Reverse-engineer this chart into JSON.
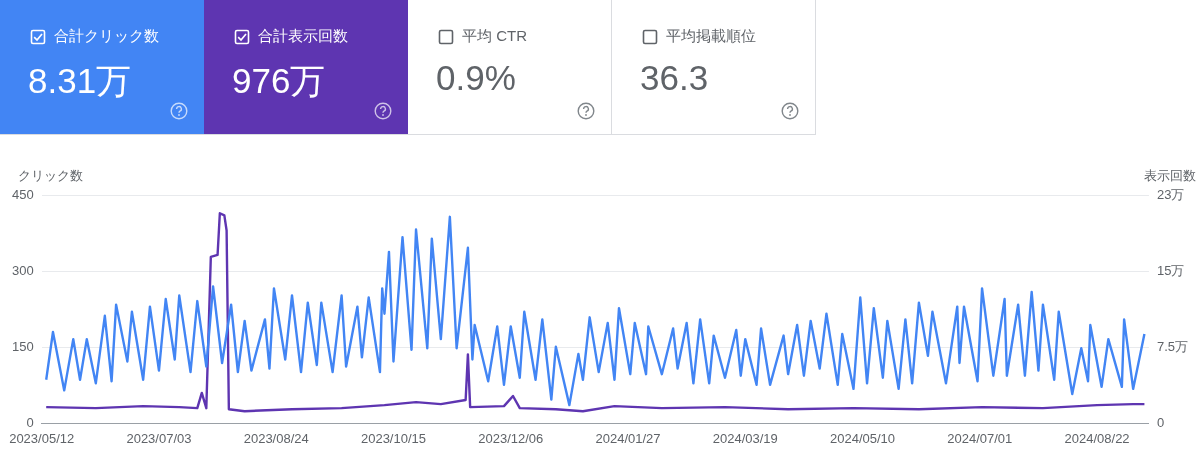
{
  "chart_data": [
    {
      "type": "other",
      "annotations": [
        "合計クリック数",
        "8.31万",
        "合計表示回数",
        "976万",
        "平均 CTR",
        "0.9%",
        "平均掲載順位",
        "36.3"
      ],
      "colors": [
        "#4285f4",
        "#5e35b1",
        null,
        null
      ]
    },
    {
      "type": "line",
      "ylabel": "クリック数",
      "y2label": "表示回数",
      "ylim": [
        0,
        450
      ],
      "yticks": [
        0,
        150,
        300,
        450
      ],
      "y2lim": [
        0,
        22.5
      ],
      "y2ticks": [
        0,
        {
          "value": 7.5,
          "label": "7.5万"
        },
        {
          "value": 15,
          "label": "15万"
        },
        {
          "value": 22.5,
          "label": "23万"
        }
      ],
      "xlim": [
        "2023-05-12",
        "2024-09-14"
      ],
      "xticks": [
        {
          "value": "2023-05-12",
          "label": "2023/05/12"
        },
        {
          "value": "2023-07-03",
          "label": "2023/07/03"
        },
        {
          "value": "2023-08-24",
          "label": "2023/08/24"
        },
        {
          "value": "2023-10-15",
          "label": "2023/10/15"
        },
        {
          "value": "2023-12-06",
          "label": "2023/12/06"
        },
        {
          "value": "2024-01-27",
          "label": "2024/01/27"
        },
        {
          "value": "2024-03-19",
          "label": "2024/03/19"
        },
        {
          "value": "2024-05-10",
          "label": "2024/05/10"
        },
        {
          "value": "2024-07-01",
          "label": "2024/07/01"
        },
        {
          "value": "2024-08-22",
          "label": "2024/08/22"
        }
      ],
      "grid": "y",
      "marker": "none",
      "line_style": "solid",
      "series": [
        {
          "color": "#4285f4",
          "x": [
            "2023-05-14",
            "2023-05-17",
            "2023-05-22",
            "2023-05-26",
            "2023-05-29",
            "2023-06-01",
            "2023-06-05",
            "2023-06-09",
            "2023-06-12",
            "2023-06-14",
            "2023-06-19",
            "2023-06-21",
            "2023-06-26",
            "2023-06-29",
            "2023-07-03",
            "2023-07-06",
            "2023-07-10",
            "2023-07-12",
            "2023-07-17",
            "2023-07-20",
            "2023-07-24",
            "2023-07-27",
            "2023-07-31",
            "2023-08-04",
            "2023-08-07",
            "2023-08-10",
            "2023-08-13",
            "2023-08-19",
            "2023-08-21",
            "2023-08-23",
            "2023-08-28",
            "2023-08-31",
            "2023-09-04",
            "2023-09-07",
            "2023-09-11",
            "2023-09-13",
            "2023-09-18",
            "2023-09-22",
            "2023-09-24",
            "2023-09-29",
            "2023-10-01",
            "2023-10-04",
            "2023-10-09",
            "2023-10-10",
            "2023-10-11",
            "2023-10-13",
            "2023-10-15",
            "2023-10-19",
            "2023-10-23",
            "2023-10-25",
            "2023-10-30",
            "2023-11-01",
            "2023-11-05",
            "2023-11-09",
            "2023-11-12",
            "2023-11-17",
            "2023-11-19",
            "2023-11-20",
            "2023-11-26",
            "2023-11-30",
            "2023-12-03",
            "2023-12-06",
            "2023-12-10",
            "2023-12-12",
            "2023-12-17",
            "2023-12-20",
            "2023-12-24",
            "2023-12-26",
            "2024-01-01",
            "2024-01-05",
            "2024-01-07",
            "2024-01-10",
            "2024-01-14",
            "2024-01-18",
            "2024-01-21",
            "2024-01-23",
            "2024-01-28",
            "2024-01-30",
            "2024-02-04",
            "2024-02-05",
            "2024-02-11",
            "2024-02-16",
            "2024-02-18",
            "2024-02-22",
            "2024-02-25",
            "2024-02-28",
            "2024-03-03",
            "2024-03-05",
            "2024-03-10",
            "2024-03-15",
            "2024-03-17",
            "2024-03-19",
            "2024-03-24",
            "2024-03-26",
            "2024-03-30",
            "2024-04-05",
            "2024-04-07",
            "2024-04-11",
            "2024-04-14",
            "2024-04-17",
            "2024-04-21",
            "2024-04-24",
            "2024-04-29",
            "2024-05-01",
            "2024-05-06",
            "2024-05-09",
            "2024-05-12",
            "2024-05-15",
            "2024-05-19",
            "2024-05-21",
            "2024-05-26",
            "2024-05-29",
            "2024-06-01",
            "2024-06-04",
            "2024-06-08",
            "2024-06-10",
            "2024-06-16",
            "2024-06-21",
            "2024-06-22",
            "2024-06-24",
            "2024-06-30",
            "2024-07-02",
            "2024-07-07",
            "2024-07-12",
            "2024-07-13",
            "2024-07-18",
            "2024-07-21",
            "2024-07-24",
            "2024-07-27",
            "2024-07-29",
            "2024-08-03",
            "2024-08-05",
            "2024-08-11",
            "2024-08-15",
            "2024-08-18",
            "2024-08-19",
            "2024-08-24",
            "2024-08-27",
            "2024-09-02",
            "2024-09-03",
            "2024-09-07",
            "2024-09-12"
          ],
          "values": [
            86,
            180,
            65,
            166,
            86,
            166,
            79,
            212,
            83,
            234,
            122,
            220,
            86,
            230,
            104,
            245,
            126,
            252,
            101,
            241,
            112,
            270,
            119,
            234,
            101,
            202,
            104,
            205,
            108,
            266,
            126,
            252,
            101,
            238,
            115,
            238,
            101,
            252,
            112,
            230,
            130,
            248,
            101,
            266,
            216,
            338,
            122,
            367,
            145,
            382,
            148,
            364,
            166,
            407,
            148,
            346,
            126,
            194,
            83,
            191,
            76,
            191,
            90,
            220,
            86,
            205,
            47,
            151,
            36,
            137,
            86,
            209,
            101,
            198,
            86,
            227,
            97,
            198,
            97,
            191,
            97,
            187,
            108,
            198,
            79,
            205,
            79,
            173,
            90,
            184,
            94,
            166,
            76,
            187,
            76,
            173,
            97,
            194,
            94,
            202,
            108,
            216,
            76,
            176,
            68,
            248,
            79,
            227,
            90,
            202,
            68,
            205,
            79,
            238,
            133,
            220,
            79,
            230,
            119,
            230,
            83,
            266,
            94,
            245,
            94,
            234,
            94,
            259,
            104,
            234,
            86,
            220,
            58,
            148,
            83,
            194,
            72,
            166,
            72,
            205,
            68,
            176
          ]
        },
        {
          "color": "#5e35b1",
          "axis": "y2",
          "x": [
            "2023-05-14",
            "2023-06-05",
            "2023-06-26",
            "2023-07-12",
            "2023-07-20",
            "2023-07-22",
            "2023-07-24",
            "2023-07-26",
            "2023-07-29",
            "2023-07-30",
            "2023-08-01",
            "2023-08-02",
            "2023-08-03",
            "2023-08-10",
            "2023-08-31",
            "2023-09-22",
            "2023-10-11",
            "2023-10-25",
            "2023-11-05",
            "2023-11-16",
            "2023-11-17",
            "2023-11-18",
            "2023-12-03",
            "2023-12-07",
            "2023-12-10",
            "2023-12-26",
            "2024-01-07",
            "2024-01-21",
            "2024-02-11",
            "2024-03-10",
            "2024-04-07",
            "2024-05-06",
            "2024-06-04",
            "2024-07-02",
            "2024-07-29",
            "2024-08-22",
            "2024-09-07",
            "2024-09-12"
          ],
          "values": [
            1.6,
            1.5,
            1.7,
            1.6,
            1.5,
            3.0,
            1.5,
            16.4,
            16.6,
            20.7,
            20.5,
            19.0,
            1.4,
            1.2,
            1.4,
            1.5,
            1.8,
            2.1,
            1.9,
            2.3,
            6.8,
            1.6,
            1.7,
            2.7,
            1.5,
            1.4,
            1.2,
            1.7,
            1.5,
            1.6,
            1.4,
            1.5,
            1.4,
            1.6,
            1.5,
            1.8,
            1.9,
            1.9
          ]
        }
      ]
    }
  ]
}
